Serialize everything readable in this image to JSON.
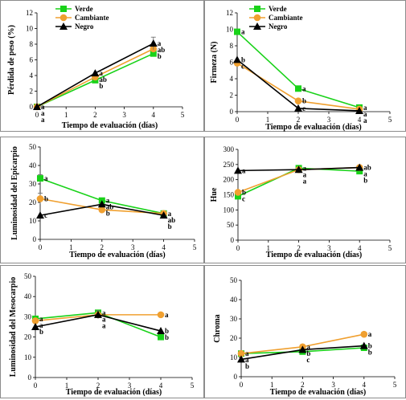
{
  "colors": {
    "verde": "#19d219",
    "cambiante": "#f0a030",
    "negro": "#000000"
  },
  "legend": {
    "items": [
      "Verde",
      "Cambiante",
      "Negro"
    ]
  },
  "chart_data": [
    {
      "type": "line",
      "xlabel": "Tiempo de evaluación (días)",
      "ylabel": "Pérdida de peso (%)",
      "xlim": [
        0,
        5
      ],
      "ylim": [
        0,
        12
      ],
      "xticks": [
        0,
        1,
        2,
        3,
        4,
        5
      ],
      "yticks": [
        0,
        2,
        4,
        6,
        8,
        10,
        12
      ],
      "x": [
        0,
        2,
        4
      ],
      "show_legend": true,
      "series": [
        {
          "name": "Verde",
          "values": [
            0,
            3.4,
            6.8
          ],
          "errors": [
            0,
            0,
            0
          ],
          "sig": [
            "a",
            "b",
            "b"
          ]
        },
        {
          "name": "Cambiante",
          "values": [
            0,
            3.8,
            7.4
          ],
          "errors": [
            0,
            0,
            0
          ],
          "sig": [
            "a",
            "ab",
            "ab"
          ]
        },
        {
          "name": "Negro",
          "values": [
            0,
            4.3,
            8.1
          ],
          "errors": [
            0,
            0,
            0.8
          ],
          "sig": [
            "a",
            "a",
            "a"
          ]
        }
      ]
    },
    {
      "type": "line",
      "xlabel": "Tiempo de evaluación (días)",
      "ylabel": "Firmeza (N)",
      "xlim": [
        0,
        5
      ],
      "ylim": [
        0,
        12
      ],
      "xticks": [
        0,
        1,
        2,
        3,
        4,
        5
      ],
      "yticks": [
        0,
        2,
        4,
        6,
        8,
        10,
        12
      ],
      "x": [
        0,
        2,
        4
      ],
      "show_legend": true,
      "series": [
        {
          "name": "Verde",
          "values": [
            9.7,
            2.8,
            0.5
          ],
          "errors": [
            0,
            0,
            0
          ],
          "sig": [
            "a",
            "a",
            "a"
          ]
        },
        {
          "name": "Cambiante",
          "values": [
            5.9,
            1.3,
            0.3
          ],
          "errors": [
            0,
            0,
            0
          ],
          "sig": [
            "c",
            "b",
            "a"
          ]
        },
        {
          "name": "Negro",
          "values": [
            6.3,
            0.4,
            0.1
          ],
          "errors": [
            0,
            0,
            0
          ],
          "sig": [
            "b",
            "c",
            "a"
          ]
        }
      ]
    },
    {
      "type": "line",
      "xlabel": "Tiempo de evaluación (días)",
      "ylabel": "Luminosidad del Epicarpio",
      "xlim": [
        0,
        5
      ],
      "ylim": [
        0,
        50
      ],
      "xticks": [
        0,
        1,
        2,
        3,
        4,
        5
      ],
      "yticks": [
        0,
        10,
        20,
        30,
        40,
        50
      ],
      "x": [
        0,
        2,
        4
      ],
      "show_legend": false,
      "series": [
        {
          "name": "Verde",
          "values": [
            33,
            21,
            14
          ],
          "errors": [
            2,
            0,
            0
          ],
          "sig": [
            "a",
            "a",
            "a"
          ]
        },
        {
          "name": "Cambiante",
          "values": [
            22,
            16,
            14
          ],
          "errors": [
            3,
            0,
            0
          ],
          "sig": [
            "b",
            "b",
            "ab"
          ]
        },
        {
          "name": "Negro",
          "values": [
            13,
            19,
            13
          ],
          "errors": [
            0,
            0,
            0
          ],
          "sig": [
            "c",
            "ab",
            "b"
          ]
        }
      ]
    },
    {
      "type": "line",
      "xlabel": "Tiempo de evaluación (días)",
      "ylabel": "Hue",
      "xlim": [
        0,
        5
      ],
      "ylim": [
        0,
        300
      ],
      "xticks": [
        0,
        1,
        2,
        3,
        4,
        5
      ],
      "yticks": [
        0,
        50,
        100,
        150,
        200,
        250,
        300
      ],
      "x": [
        0,
        2,
        4
      ],
      "show_legend": false,
      "series": [
        {
          "name": "Verde",
          "values": [
            145,
            238,
            228
          ],
          "errors": [
            0,
            0,
            0
          ],
          "sig": [
            "c",
            "a",
            "b"
          ]
        },
        {
          "name": "Cambiante",
          "values": [
            158,
            233,
            240
          ],
          "errors": [
            0,
            0,
            0
          ],
          "sig": [
            "b",
            "a",
            "ab"
          ]
        },
        {
          "name": "Negro",
          "values": [
            230,
            233,
            240
          ],
          "errors": [
            0,
            0,
            0
          ],
          "sig": [
            "a",
            "a",
            "a"
          ]
        }
      ]
    },
    {
      "type": "line",
      "xlabel": "Tiempo de evaluación (días)",
      "ylabel": "Luminosidad del Mesocarpio",
      "xlim": [
        0,
        5
      ],
      "ylim": [
        0,
        50
      ],
      "xticks": [
        0,
        1,
        2,
        3,
        4,
        5
      ],
      "yticks": [
        0,
        10,
        20,
        30,
        40,
        50
      ],
      "x": [
        0,
        2,
        4
      ],
      "show_legend": false,
      "series": [
        {
          "name": "Verde",
          "values": [
            29,
            32,
            20
          ],
          "errors": [
            0,
            0,
            0
          ],
          "sig": [
            "a",
            "a",
            "b"
          ]
        },
        {
          "name": "Cambiante",
          "values": [
            28,
            31,
            31
          ],
          "errors": [
            0,
            0,
            0
          ],
          "sig": [
            "a",
            "a",
            "a"
          ]
        },
        {
          "name": "Negro",
          "values": [
            25,
            31,
            23
          ],
          "errors": [
            0,
            2,
            0
          ],
          "sig": [
            "b",
            "a",
            "b"
          ]
        }
      ]
    },
    {
      "type": "line",
      "xlabel": "Tiempo de evaluación (días)",
      "ylabel": "Chroma",
      "xlim": [
        0,
        5
      ],
      "ylim": [
        0,
        50
      ],
      "xticks": [
        0,
        1,
        2,
        3,
        4,
        5
      ],
      "yticks": [
        0,
        10,
        20,
        30,
        40,
        50
      ],
      "x": [
        0,
        2,
        4
      ],
      "show_legend": false,
      "series": [
        {
          "name": "Verde",
          "values": [
            12,
            13,
            15
          ],
          "errors": [
            0,
            0,
            0
          ],
          "sig": [
            "a",
            "c",
            "b"
          ]
        },
        {
          "name": "Cambiante",
          "values": [
            12,
            15.5,
            22
          ],
          "errors": [
            0,
            0,
            0
          ],
          "sig": [
            "a",
            "a",
            "a"
          ]
        },
        {
          "name": "Negro",
          "values": [
            9,
            14,
            16
          ],
          "errors": [
            0,
            0,
            0
          ],
          "sig": [
            "b",
            "b",
            "b"
          ]
        }
      ]
    }
  ]
}
